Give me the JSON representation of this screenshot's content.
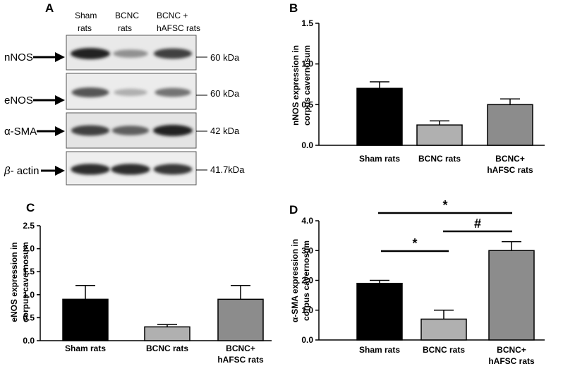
{
  "panels": {
    "A": {
      "letter": "A",
      "lanes": [
        {
          "line1": "Sham",
          "line2": "rats"
        },
        {
          "line1": "BCNC",
          "line2": "rats"
        },
        {
          "line1": "BCNC +",
          "line2": "hAFSC rats"
        }
      ],
      "blots": [
        {
          "label": "nNOS",
          "kda": "60 kDa",
          "intensity": [
            1.0,
            0.45,
            0.85
          ]
        },
        {
          "label": "eNOS",
          "kda": "60 kDa",
          "intensity": [
            0.75,
            0.3,
            0.6
          ]
        },
        {
          "label": "α-SMA",
          "kda": "42 kDa",
          "intensity": [
            0.85,
            0.7,
            1.0
          ]
        },
        {
          "label": "β- actin",
          "label_prefix": "β",
          "label_suffix": "- actin",
          "kda": "41.7kDa",
          "intensity": [
            0.95,
            0.95,
            0.9
          ]
        }
      ]
    },
    "B": {
      "letter": "B"
    },
    "C": {
      "letter": "C"
    },
    "D": {
      "letter": "D",
      "significance": [
        {
          "symbol": "*",
          "from": 0,
          "to": 2
        },
        {
          "symbol": "#",
          "from": 1,
          "to": 2
        },
        {
          "symbol": "*",
          "from": 0,
          "to": 1
        }
      ]
    }
  },
  "colors": {
    "sham": "#000000",
    "bcnc": "#b0b0b0",
    "hafsc": "#8c8c8c",
    "axis": "#000000"
  },
  "chart_data": [
    {
      "panel": "B",
      "type": "bar",
      "categories": [
        "Sham rats",
        "BCNC rats",
        "BCNC+\nhAFSC rats"
      ],
      "values": [
        0.7,
        0.25,
        0.5
      ],
      "errors": [
        0.08,
        0.05,
        0.07
      ],
      "ylabel_line1": "nNOS expression in",
      "ylabel_line2": "corpus cavernosum",
      "ylim": [
        0,
        1.5
      ],
      "yticks": [
        "0.0",
        "0.5",
        "1.0",
        "1.5"
      ],
      "ytick_values": [
        0,
        0.5,
        1.0,
        1.5
      ]
    },
    {
      "panel": "C",
      "type": "bar",
      "categories": [
        "Sham rats",
        "BCNC rats",
        "BCNC+\nhAFSC rats"
      ],
      "values": [
        0.9,
        0.3,
        0.9
      ],
      "errors": [
        0.3,
        0.05,
        0.3
      ],
      "ylabel_line1": "eNOS expression in",
      "ylabel_line2": "corpus cavernosum",
      "ylim": [
        0,
        2.5
      ],
      "yticks": [
        "0.0",
        "0.5",
        "1.0",
        "1.5",
        "2.0",
        "2.5"
      ],
      "ytick_values": [
        0,
        0.5,
        1.0,
        1.5,
        2.0,
        2.5
      ]
    },
    {
      "panel": "D",
      "type": "bar",
      "categories": [
        "Sham rats",
        "BCNC rats",
        "BCNC+\nhAFSC rats"
      ],
      "values": [
        1.9,
        0.7,
        3.0
      ],
      "errors": [
        0.1,
        0.3,
        0.3
      ],
      "ylabel_line1": "α-SMA expression in",
      "ylabel_line2": "corpus cavernosum",
      "ylim": [
        0,
        4.0
      ],
      "yticks": [
        "0.0",
        "1.0",
        "2.0",
        "3.0",
        "4.0"
      ],
      "ytick_values": [
        0,
        1.0,
        2.0,
        3.0,
        4.0
      ]
    }
  ]
}
